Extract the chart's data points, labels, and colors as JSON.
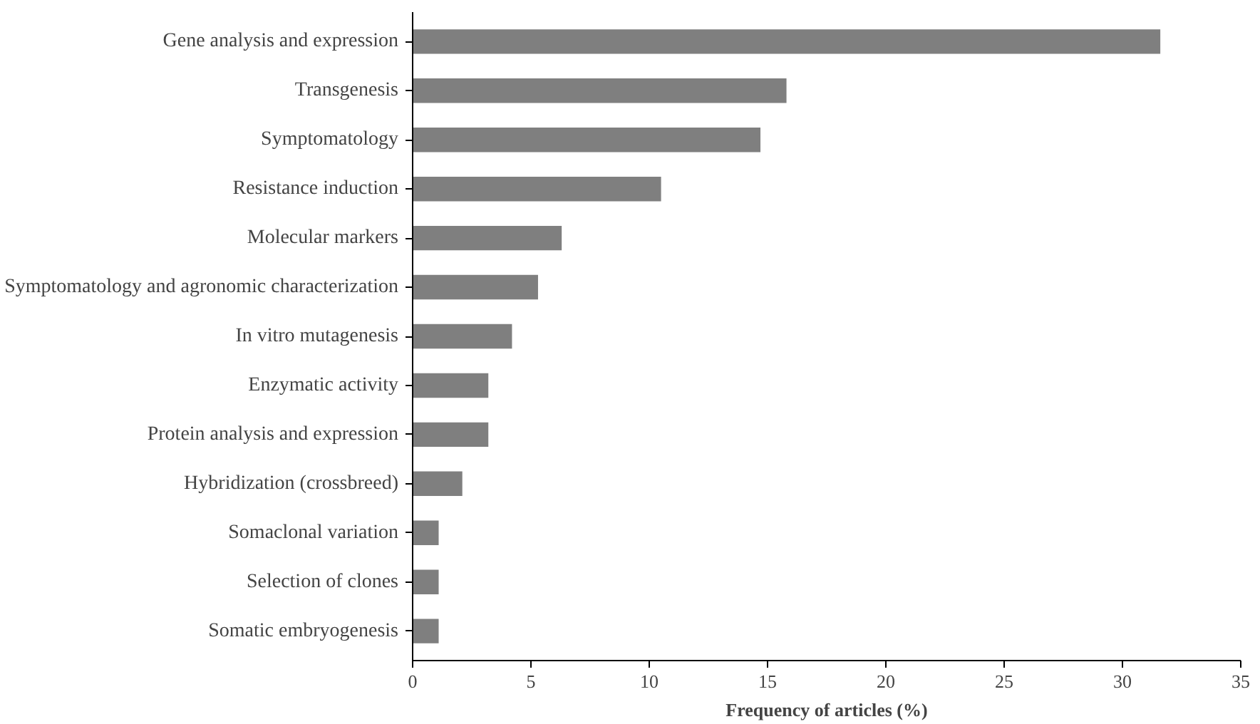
{
  "chart_data": {
    "type": "bar",
    "orientation": "horizontal",
    "xlabel": "Frequency of articles (%)",
    "categories": [
      "Gene analysis and expression",
      "Transgenesis",
      "Symptomatology",
      "Resistance induction",
      "Molecular markers",
      "Symptomatology and agronomic characterization",
      "In vitro mutagenesis",
      "Enzymatic activity",
      "Protein analysis and expression",
      "Hybridization (crossbreed)",
      "Somaclonal variation",
      "Selection of clones",
      "Somatic embryogenesis"
    ],
    "values": [
      31.6,
      15.8,
      14.7,
      10.5,
      6.3,
      5.3,
      4.2,
      3.2,
      3.2,
      2.1,
      1.1,
      1.1,
      1.1
    ],
    "color": "#7f7f7f",
    "xlim": [
      0,
      35
    ],
    "xticks": [
      0,
      5,
      10,
      15,
      20,
      25,
      30,
      35
    ],
    "grid": false
  }
}
